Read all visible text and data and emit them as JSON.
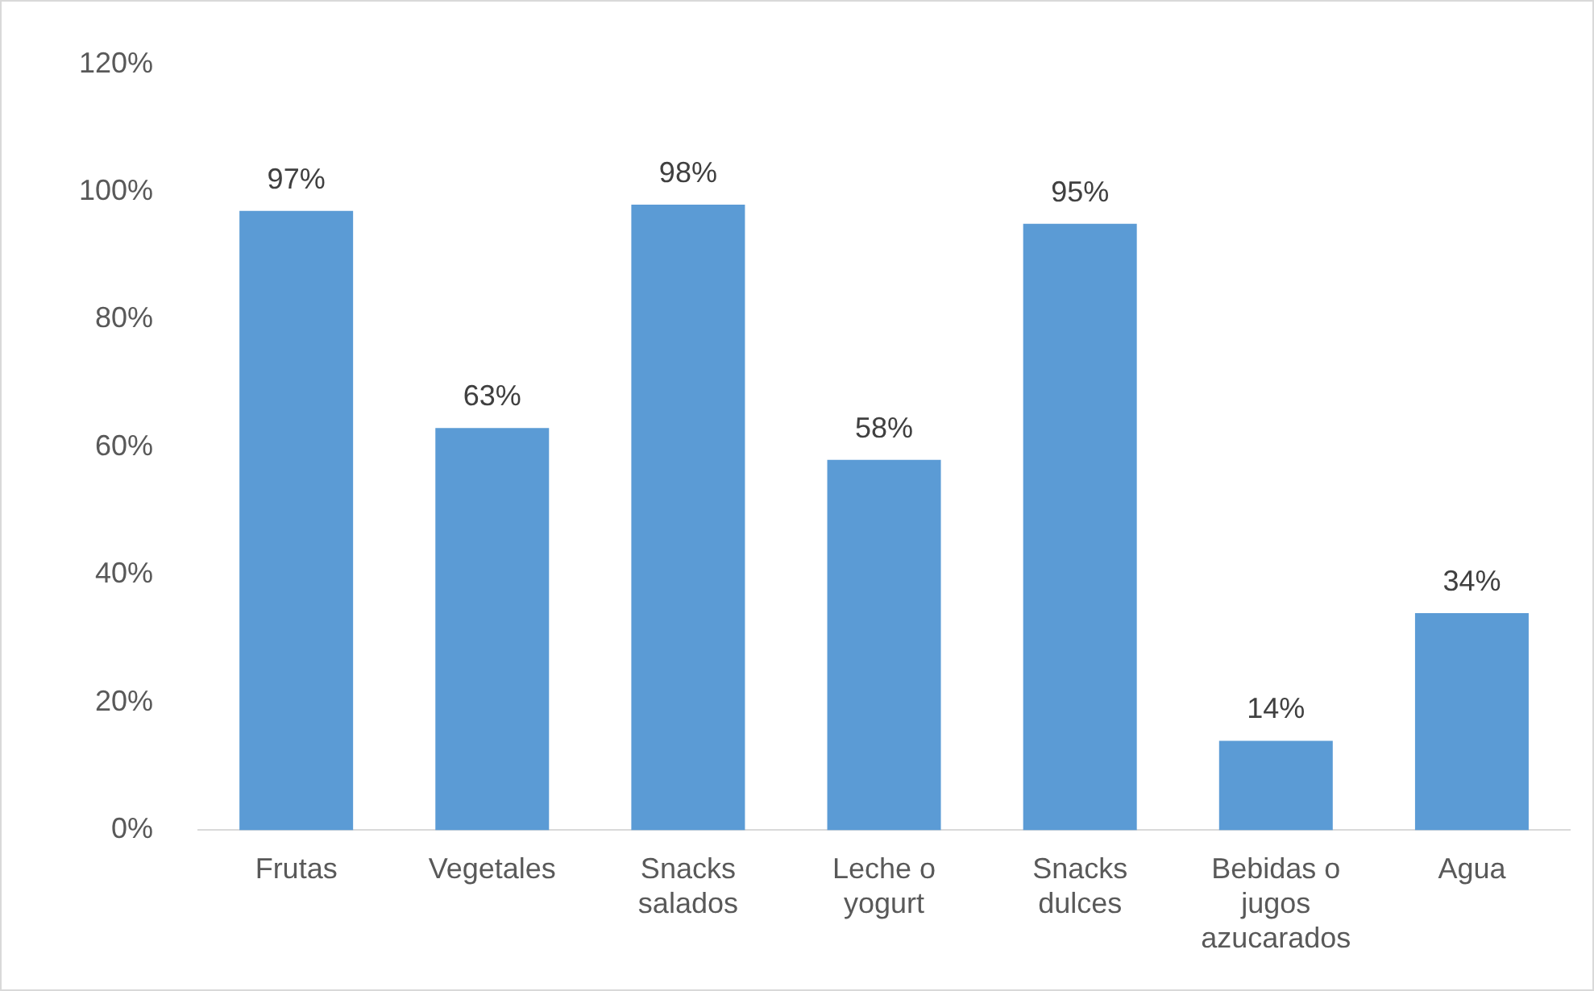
{
  "chart_data": {
    "type": "bar",
    "categories": [
      "Frutas",
      "Vegetales",
      "Snacks salados",
      "Leche o yogurt",
      "Snacks dulces",
      "Bebidas o jugos azucarados",
      "Agua"
    ],
    "values": [
      97,
      63,
      98,
      58,
      95,
      14,
      34
    ],
    "value_labels": [
      "97%",
      "63%",
      "98%",
      "58%",
      "95%",
      "14%",
      "34%"
    ],
    "color": "#5b9bd5",
    "ylim": [
      0,
      120
    ],
    "yticks": [
      {
        "value": 0,
        "label": "0%"
      },
      {
        "value": 20,
        "label": "20%"
      },
      {
        "value": 40,
        "label": "40%"
      },
      {
        "value": 60,
        "label": "60%"
      },
      {
        "value": 80,
        "label": "80%"
      },
      {
        "value": 100,
        "label": "100%"
      },
      {
        "value": 120,
        "label": "120%"
      }
    ],
    "grid": false,
    "legend": false
  }
}
